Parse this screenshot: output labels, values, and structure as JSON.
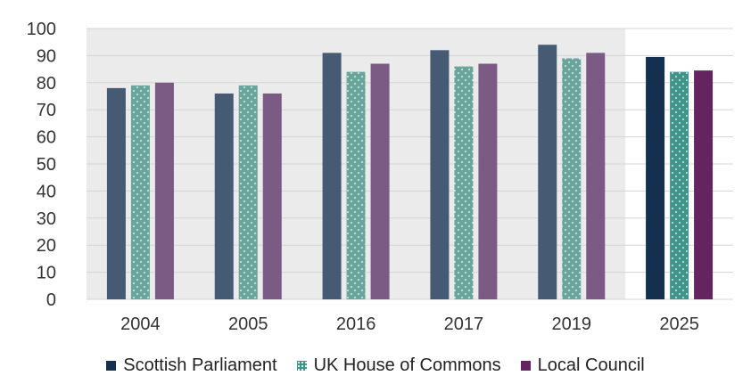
{
  "chart_data": {
    "type": "bar",
    "categories": [
      "2004",
      "2005",
      "2016",
      "2017",
      "2019",
      "2025"
    ],
    "series": [
      {
        "name": "Scottish Parliament",
        "values": [
          78,
          76,
          91,
          92,
          94,
          89.5
        ]
      },
      {
        "name": "UK House of Commons",
        "values": [
          79,
          79,
          84,
          86,
          89,
          84
        ]
      },
      {
        "name": "Local Council",
        "values": [
          80,
          76,
          87,
          87,
          91,
          84.5
        ]
      }
    ],
    "title": "",
    "xlabel": "",
    "ylabel": "",
    "ylim": [
      0,
      100
    ],
    "yticks": [
      "0",
      "10",
      "20",
      "30",
      "40",
      "50",
      "60",
      "70",
      "80",
      "90",
      "100"
    ],
    "grid": "horizontal",
    "legend_position": "bottom",
    "shaded_categories": [
      "2004",
      "2005",
      "2016",
      "2017",
      "2019"
    ],
    "highlighted_category": "2025",
    "colors": {
      "series_historic": [
        "#465a74",
        "#6aa59b",
        "#7b5a84"
      ],
      "series_highlight": [
        "#14304f",
        "#3f958c",
        "#64245f"
      ],
      "shaded_background": "#ebebeb",
      "gridline": "#d4d4d4",
      "dots": "#ffffff"
    },
    "patterns": [
      "solid",
      "dotted",
      "solid"
    ]
  }
}
